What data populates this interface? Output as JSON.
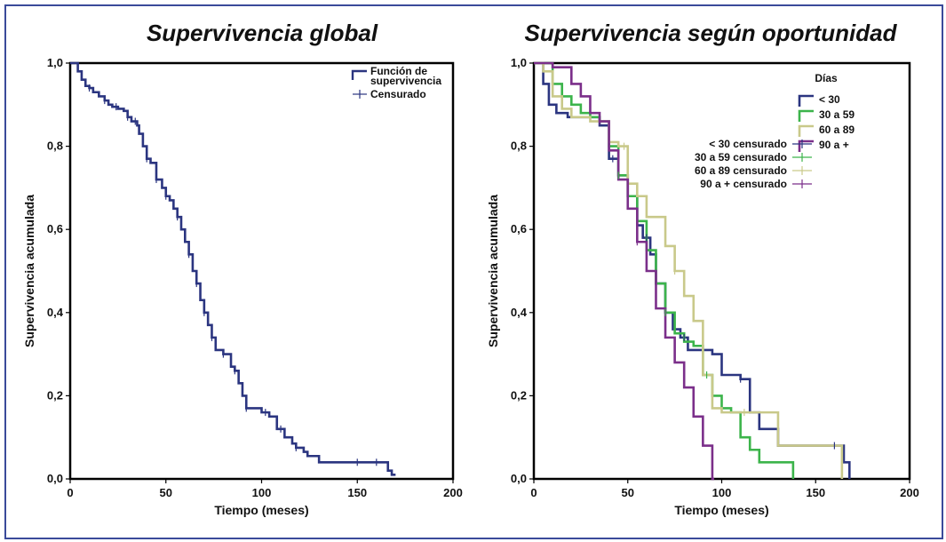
{
  "chart_data": [
    {
      "type": "line",
      "step": true,
      "title": "Supervivencia global",
      "xlabel": "Tiempo (meses)",
      "ylabel": "Supervivencia acumulada",
      "xlim": [
        0,
        200
      ],
      "ylim": [
        0,
        1
      ],
      "xticks": [
        0,
        50,
        100,
        150,
        200
      ],
      "xtick_labels": [
        "0",
        "50",
        "100",
        "150",
        "200"
      ],
      "yticks": [
        0,
        0.2,
        0.4,
        0.6,
        0.8,
        1.0
      ],
      "ytick_labels": [
        "0,0",
        "0,2",
        "0,4",
        "0,6",
        "0,8",
        "1,0"
      ],
      "legend": {
        "position": "top-right",
        "entries": [
          {
            "label_lines": [
              "Función de",
              "supervivencia"
            ],
            "kind": "line"
          },
          {
            "label_lines": [
              "Censurado"
            ],
            "kind": "censor"
          }
        ]
      },
      "series": [
        {
          "name": "Función de supervivencia",
          "color": "#2b3580",
          "x": [
            0,
            4,
            6,
            8,
            10,
            12,
            15,
            18,
            20,
            22,
            25,
            28,
            30,
            32,
            35,
            36,
            38,
            40,
            42,
            45,
            48,
            50,
            52,
            54,
            56,
            58,
            60,
            62,
            64,
            66,
            68,
            70,
            72,
            74,
            76,
            78,
            80,
            82,
            84,
            86,
            88,
            90,
            92,
            96,
            100,
            104,
            108,
            112,
            116,
            118,
            122,
            124,
            130,
            140,
            150,
            160,
            166,
            168
          ],
          "y": [
            1.0,
            0.98,
            0.96,
            0.945,
            0.94,
            0.93,
            0.92,
            0.91,
            0.9,
            0.895,
            0.89,
            0.885,
            0.87,
            0.86,
            0.85,
            0.83,
            0.8,
            0.77,
            0.76,
            0.72,
            0.7,
            0.68,
            0.67,
            0.65,
            0.63,
            0.6,
            0.57,
            0.54,
            0.5,
            0.47,
            0.43,
            0.4,
            0.37,
            0.34,
            0.31,
            0.31,
            0.3,
            0.3,
            0.27,
            0.26,
            0.23,
            0.2,
            0.17,
            0.17,
            0.16,
            0.15,
            0.12,
            0.1,
            0.085,
            0.075,
            0.065,
            0.055,
            0.04,
            0.04,
            0.04,
            0.04,
            0.02,
            0.01
          ],
          "x_end": 170
        }
      ],
      "censored_series": [
        {
          "name": "Censurado",
          "color": "#2b3580",
          "x": [
            10,
            18,
            24,
            30,
            34,
            40,
            45,
            50,
            56,
            62,
            66,
            70,
            74,
            80,
            86,
            92,
            102,
            110,
            118,
            150,
            160
          ]
        }
      ]
    },
    {
      "type": "line",
      "step": true,
      "title": "Supervivencia según oportunidad",
      "xlabel": "Tiempo (meses)",
      "ylabel": "Supervivencia acumulada",
      "xlim": [
        0,
        200
      ],
      "ylim": [
        0,
        1
      ],
      "xticks": [
        0,
        50,
        100,
        150,
        200
      ],
      "xtick_labels": [
        "0",
        "50",
        "100",
        "150",
        "200"
      ],
      "yticks": [
        0,
        0.2,
        0.4,
        0.6,
        0.8,
        1.0
      ],
      "ytick_labels": [
        "0,0",
        "0,2",
        "0,4",
        "0,6",
        "0,8",
        "1,0"
      ],
      "legend": {
        "title": "Días",
        "position": "top-right",
        "line_entries": [
          {
            "label": "< 30",
            "color": "#2b3580"
          },
          {
            "label": "30 a 59",
            "color": "#3cb44b"
          },
          {
            "label": "60 a 89",
            "color": "#c9c98a"
          },
          {
            "label": "90 a +",
            "color": "#7b2f8a"
          }
        ],
        "censor_entries": [
          {
            "label": "< 30 censurado",
            "color": "#2b3580"
          },
          {
            "label": "30 a 59 censurado",
            "color": "#3cb44b"
          },
          {
            "label": "60 a 89 censurado",
            "color": "#c9c98a"
          },
          {
            "label": "90 a + censurado",
            "color": "#7b2f8a"
          }
        ]
      },
      "series": [
        {
          "name": "< 30",
          "color": "#2b3580",
          "x": [
            0,
            5,
            8,
            12,
            18,
            25,
            30,
            35,
            40,
            45,
            50,
            55,
            58,
            62,
            65,
            70,
            74,
            78,
            82,
            88,
            95,
            100,
            110,
            115,
            120,
            130,
            160,
            165,
            168
          ],
          "y": [
            1.0,
            0.95,
            0.9,
            0.88,
            0.87,
            0.87,
            0.87,
            0.85,
            0.77,
            0.73,
            0.68,
            0.61,
            0.58,
            0.54,
            0.47,
            0.4,
            0.36,
            0.34,
            0.31,
            0.31,
            0.3,
            0.25,
            0.24,
            0.16,
            0.12,
            0.08,
            0.08,
            0.04,
            0.0
          ],
          "x_end": 168
        },
        {
          "name": "30 a 59",
          "color": "#3cb44b",
          "x": [
            0,
            10,
            15,
            20,
            25,
            30,
            35,
            40,
            45,
            50,
            55,
            60,
            65,
            70,
            75,
            80,
            85,
            90,
            95,
            100,
            105,
            110,
            115,
            120,
            130,
            138
          ],
          "y": [
            1.0,
            0.95,
            0.92,
            0.9,
            0.88,
            0.87,
            0.86,
            0.8,
            0.73,
            0.68,
            0.62,
            0.55,
            0.47,
            0.4,
            0.35,
            0.33,
            0.32,
            0.25,
            0.2,
            0.17,
            0.16,
            0.1,
            0.07,
            0.04,
            0.04,
            0.0
          ],
          "x_end": 138
        },
        {
          "name": "60 a 89",
          "color": "#c9c98a",
          "x": [
            0,
            5,
            10,
            15,
            20,
            30,
            40,
            45,
            50,
            55,
            60,
            65,
            70,
            75,
            80,
            85,
            90,
            95,
            100,
            105,
            110,
            120,
            130,
            140,
            150,
            160,
            164
          ],
          "y": [
            1.0,
            0.98,
            0.92,
            0.89,
            0.87,
            0.86,
            0.81,
            0.8,
            0.71,
            0.68,
            0.63,
            0.63,
            0.56,
            0.5,
            0.44,
            0.38,
            0.25,
            0.17,
            0.16,
            0.16,
            0.16,
            0.16,
            0.08,
            0.08,
            0.08,
            0.08,
            0.0
          ],
          "x_end": 164
        },
        {
          "name": "90 a +",
          "color": "#7b2f8a",
          "x": [
            0,
            10,
            20,
            25,
            30,
            35,
            40,
            45,
            50,
            55,
            60,
            65,
            70,
            75,
            80,
            85,
            90,
            95
          ],
          "y": [
            1.0,
            0.99,
            0.95,
            0.92,
            0.88,
            0.86,
            0.79,
            0.72,
            0.65,
            0.57,
            0.5,
            0.41,
            0.34,
            0.28,
            0.22,
            0.15,
            0.08,
            0.0
          ],
          "x_end": 96
        }
      ],
      "censored_series": [
        {
          "name": "< 30 censurado",
          "color": "#2b3580",
          "x": [
            42,
            60,
            80,
            110,
            160
          ]
        },
        {
          "name": "30 a 59 censurado",
          "color": "#3cb44b",
          "x": [
            45,
            70,
            92
          ]
        },
        {
          "name": "60 a 89 censurado",
          "color": "#c9c98a",
          "x": [
            48,
            75,
            112
          ]
        },
        {
          "name": "90 a + censurado",
          "color": "#7b2f8a",
          "x": [
            35,
            55
          ]
        }
      ]
    }
  ]
}
